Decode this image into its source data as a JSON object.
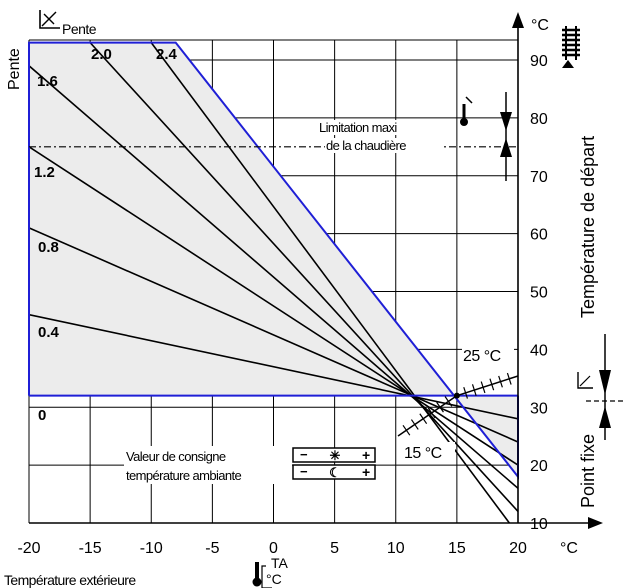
{
  "chart_data": {
    "type": "line",
    "title": "Pente",
    "ylabel_vertical_left": "Pente",
    "ylabel": "Température de départ",
    "y_unit": "°C",
    "xlabel": "Température extérieure",
    "x_unit": "°C",
    "x_symbol": "TA",
    "xlim": [
      -20,
      20
    ],
    "ylim": [
      10,
      90
    ],
    "x_ticks": [
      -20,
      -15,
      -10,
      -5,
      0,
      5,
      10,
      15,
      20
    ],
    "y_ticks": [
      10,
      20,
      30,
      40,
      50,
      60,
      70,
      80,
      90
    ],
    "grid": true,
    "pivot": {
      "x": 15,
      "y": 32
    },
    "limit_line": {
      "y": 75,
      "label_line1": "Limitation maxi",
      "label_line2": "de la chaudière"
    },
    "fixed_point_label": "Point fixe",
    "pivot_label_top": "25 °C",
    "pivot_label_bottom": "15 °C",
    "setpoint_label_line1": "Valeur de consigne",
    "setpoint_label_line2": "température ambiante",
    "day_control": {
      "minus": "−",
      "plus": "+"
    },
    "night_control": {
      "minus": "−",
      "plus": "+"
    },
    "series": [
      {
        "name": "0",
        "values": [
          [
            -20,
            32
          ],
          [
            20,
            32
          ]
        ]
      },
      {
        "name": "0.4",
        "values": [
          [
            -20,
            46
          ],
          [
            20,
            28
          ]
        ]
      },
      {
        "name": "0.8",
        "values": [
          [
            -20,
            61
          ],
          [
            20,
            24
          ]
        ]
      },
      {
        "name": "1.2",
        "values": [
          [
            -20,
            75
          ],
          [
            20,
            20
          ]
        ]
      },
      {
        "name": "1.6",
        "values": [
          [
            -20,
            89
          ],
          [
            20,
            16
          ]
        ]
      },
      {
        "name": "2.0",
        "values": [
          [
            -15,
            93
          ],
          [
            20,
            12
          ]
        ]
      },
      {
        "name": "2.4",
        "values": [
          [
            -10,
            93
          ],
          [
            20,
            8
          ]
        ]
      }
    ],
    "envelope": {
      "values": [
        [
          -20,
          32
        ],
        [
          -20,
          93
        ],
        [
          -8,
          93
        ],
        [
          20,
          18
        ],
        [
          20,
          32
        ]
      ]
    },
    "colors": {
      "envelope": "#1f1fd6",
      "fill": "#ececec",
      "curves": "#000000"
    }
  }
}
